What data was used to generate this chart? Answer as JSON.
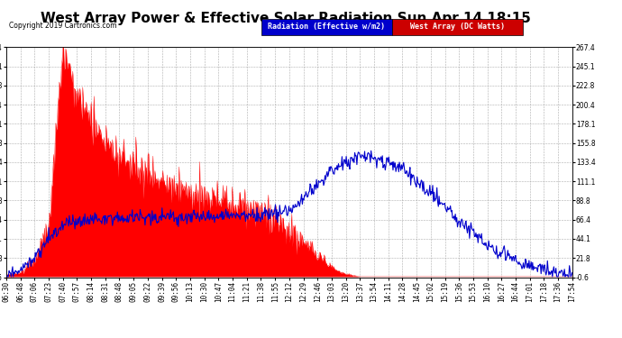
{
  "title": "West Array Power & Effective Solar Radiation Sun Apr 14 18:15",
  "copyright": "Copyright 2019 Cartronics.com",
  "legend_blue": "Radiation (Effective w/m2)",
  "legend_red": "West Array (DC Watts)",
  "ylim": [
    -0.6,
    267.4
  ],
  "yticks": [
    267.4,
    245.1,
    222.8,
    200.4,
    178.1,
    155.8,
    133.4,
    111.1,
    88.8,
    66.4,
    44.1,
    21.8,
    -0.6
  ],
  "color_red": "#ff0000",
  "color_blue": "#0000cc",
  "background_color": "#ffffff",
  "grid_color": "#999999",
  "title_fontsize": 11,
  "axis_fontsize": 5.5,
  "xtick_labels": [
    "06:30",
    "06:48",
    "07:06",
    "07:23",
    "07:40",
    "07:57",
    "08:14",
    "08:31",
    "08:48",
    "09:05",
    "09:22",
    "09:39",
    "09:56",
    "10:13",
    "10:30",
    "10:47",
    "11:04",
    "11:21",
    "11:38",
    "11:55",
    "12:12",
    "12:29",
    "12:46",
    "13:03",
    "13:20",
    "13:37",
    "13:54",
    "14:11",
    "14:28",
    "14:45",
    "15:02",
    "15:19",
    "15:36",
    "15:53",
    "16:10",
    "16:27",
    "16:44",
    "17:01",
    "17:18",
    "17:36",
    "17:54"
  ],
  "red_key_values": [
    2,
    5,
    20,
    60,
    267,
    210,
    185,
    160,
    140,
    130,
    120,
    115,
    108,
    100,
    95,
    90,
    88,
    82,
    75,
    65,
    55,
    40,
    25,
    10,
    3,
    0,
    0,
    0,
    0,
    0,
    0,
    0,
    0,
    0,
    0,
    0,
    0,
    0,
    0,
    0,
    0
  ],
  "blue_key_values": [
    2,
    8,
    22,
    42,
    60,
    65,
    67,
    68,
    68,
    69,
    70,
    70,
    70,
    70,
    70,
    70,
    71,
    71,
    72,
    74,
    78,
    90,
    108,
    122,
    133,
    140,
    138,
    133,
    125,
    112,
    98,
    82,
    66,
    52,
    38,
    26,
    18,
    12,
    8,
    5,
    2
  ]
}
